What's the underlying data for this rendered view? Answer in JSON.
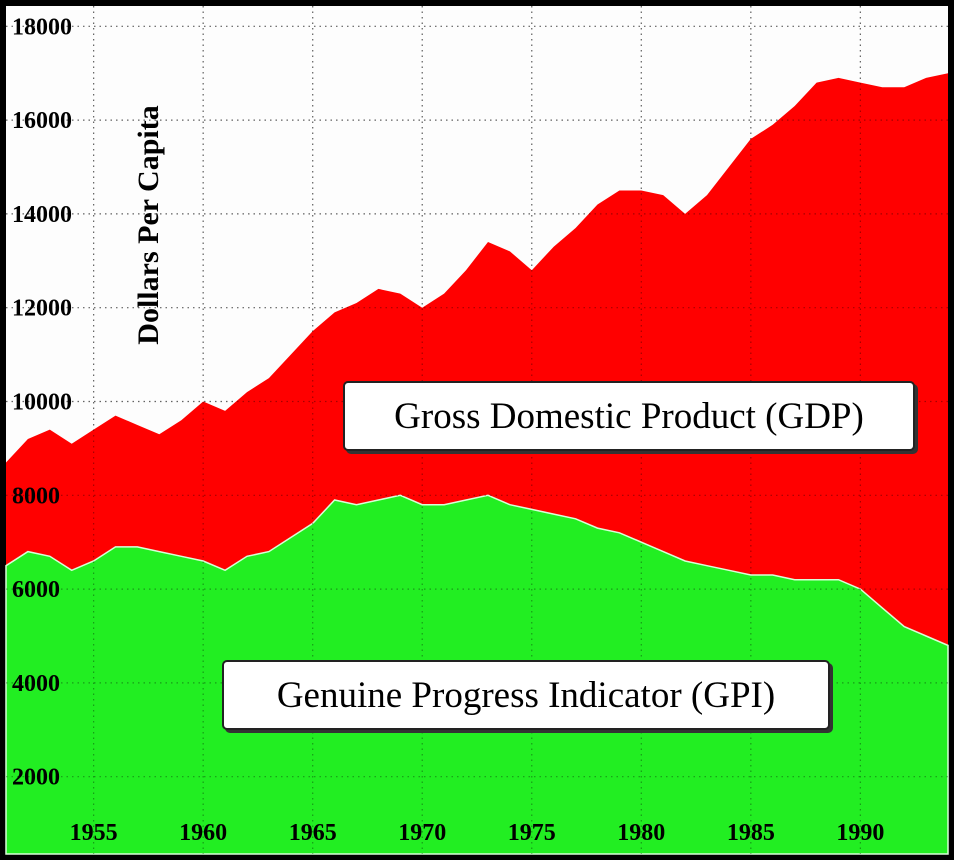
{
  "chart_data": {
    "type": "area",
    "title": "",
    "xlabel": "",
    "ylabel": "Dollars Per Capita",
    "xlim": [
      1951,
      1994
    ],
    "ylim": [
      0,
      18000
    ],
    "x_ticks": [
      "1955",
      "1960",
      "1965",
      "1970",
      "1975",
      "1980",
      "1985",
      "1990"
    ],
    "y_ticks": [
      "2000",
      "4000",
      "6000",
      "8000",
      "10000",
      "12000",
      "14000",
      "16000",
      "18000"
    ],
    "grid": true,
    "x": [
      1951,
      1952,
      1953,
      1954,
      1955,
      1956,
      1957,
      1958,
      1959,
      1960,
      1961,
      1962,
      1963,
      1964,
      1965,
      1966,
      1967,
      1968,
      1969,
      1970,
      1971,
      1972,
      1973,
      1974,
      1975,
      1976,
      1977,
      1978,
      1979,
      1980,
      1981,
      1982,
      1983,
      1984,
      1985,
      1986,
      1987,
      1988,
      1989,
      1990,
      1991,
      1992,
      1993,
      1994
    ],
    "series": [
      {
        "name": "Gross Domestic Product (GDP)",
        "color": "#ff0000",
        "values": [
          8700,
          9200,
          9400,
          9100,
          9400,
          9700,
          9500,
          9300,
          9600,
          10000,
          9800,
          10200,
          10500,
          11000,
          11500,
          11900,
          12100,
          12400,
          12300,
          12000,
          12300,
          12800,
          13400,
          13200,
          12800,
          13300,
          13700,
          14200,
          14500,
          14500,
          14400,
          14000,
          14400,
          15000,
          15600,
          15900,
          16300,
          16800,
          16900,
          16800,
          16700,
          16700,
          16900,
          17000
        ]
      },
      {
        "name": "Genuine Progress Indicator (GPI)",
        "color": "#22ee22",
        "values": [
          6500,
          6800,
          6700,
          6400,
          6600,
          6900,
          6900,
          6800,
          6700,
          6600,
          6400,
          6700,
          6800,
          7100,
          7400,
          7900,
          7800,
          7900,
          8000,
          7800,
          7800,
          7900,
          8000,
          7800,
          7700,
          7600,
          7500,
          7300,
          7200,
          7000,
          6800,
          6600,
          6500,
          6400,
          6300,
          6300,
          6200,
          6200,
          6200,
          6000,
          5600,
          5200,
          5000,
          4800
        ]
      }
    ]
  }
}
